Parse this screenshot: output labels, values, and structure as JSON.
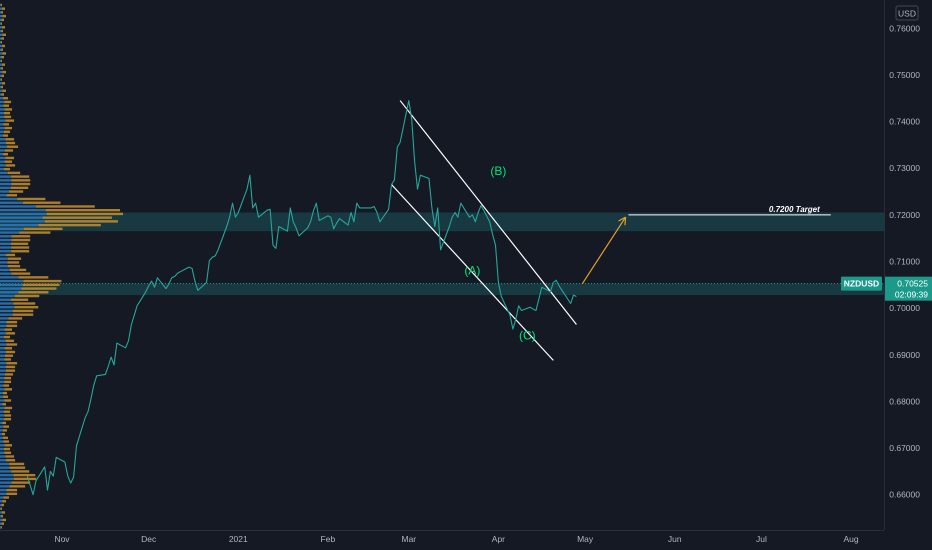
{
  "chart_data": {
    "type": "line",
    "symbol": "NZDUSD",
    "currency": "USD",
    "last_price": "0.70525",
    "countdown": "02:09:39",
    "ylim": [
      0.653,
      0.7655
    ],
    "y_ticks": [
      "0.76000",
      "0.75000",
      "0.74000",
      "0.73000",
      "0.72000",
      "0.71000",
      "0.70000",
      "0.69000",
      "0.68000",
      "0.67000",
      "0.66000"
    ],
    "y_tick_values": [
      0.76,
      0.75,
      0.74,
      0.73,
      0.72,
      0.71,
      0.7,
      0.69,
      0.68,
      0.67,
      0.66
    ],
    "x_ticks": [
      {
        "label": "Nov",
        "date": "2020-11-01"
      },
      {
        "label": "Dec",
        "date": "2020-12-01"
      },
      {
        "label": "2021",
        "date": "2021-01-01"
      },
      {
        "label": "Feb",
        "date": "2021-02-01"
      },
      {
        "label": "Mar",
        "date": "2021-03-01"
      },
      {
        "label": "Apr",
        "date": "2021-04-01"
      },
      {
        "label": "May",
        "date": "2021-05-01"
      },
      {
        "label": "Jun",
        "date": "2021-06-01"
      },
      {
        "label": "Jul",
        "date": "2021-07-01"
      },
      {
        "label": "Aug",
        "date": "2021-08-01"
      }
    ],
    "series": [
      {
        "color": "#26a69a",
        "points": [
          [
            "2020-10-20",
            0.664
          ],
          [
            "2020-10-21",
            0.662
          ],
          [
            "2020-10-22",
            0.66
          ],
          [
            "2020-10-23",
            0.663
          ],
          [
            "2020-10-26",
            0.666
          ],
          [
            "2020-10-27",
            0.661
          ],
          [
            "2020-10-28",
            0.665
          ],
          [
            "2020-10-29",
            0.664
          ],
          [
            "2020-10-30",
            0.668
          ],
          [
            "2020-11-02",
            0.667
          ],
          [
            "2020-11-03",
            0.664
          ],
          [
            "2020-11-04",
            0.6625
          ],
          [
            "2020-11-05",
            0.6638
          ],
          [
            "2020-11-06",
            0.6705
          ],
          [
            "2020-11-09",
            0.6765
          ],
          [
            "2020-11-10",
            0.6778
          ],
          [
            "2020-11-11",
            0.6805
          ],
          [
            "2020-11-12",
            0.6835
          ],
          [
            "2020-11-13",
            0.6855
          ],
          [
            "2020-11-16",
            0.6858
          ],
          [
            "2020-11-17",
            0.6875
          ],
          [
            "2020-11-18",
            0.6895
          ],
          [
            "2020-11-19",
            0.6878
          ],
          [
            "2020-11-20",
            0.6925
          ],
          [
            "2020-11-23",
            0.6915
          ],
          [
            "2020-11-24",
            0.693
          ],
          [
            "2020-11-25",
            0.6965
          ],
          [
            "2020-11-26",
            0.6985
          ],
          [
            "2020-11-27",
            0.7005
          ],
          [
            "2020-11-30",
            0.7035
          ],
          [
            "2020-12-01",
            0.7048
          ],
          [
            "2020-12-02",
            0.7058
          ],
          [
            "2020-12-03",
            0.7045
          ],
          [
            "2020-12-04",
            0.7065
          ],
          [
            "2020-12-07",
            0.7042
          ],
          [
            "2020-12-08",
            0.7052
          ],
          [
            "2020-12-09",
            0.7065
          ],
          [
            "2020-12-10",
            0.7068
          ],
          [
            "2020-12-11",
            0.7075
          ],
          [
            "2020-12-14",
            0.7085
          ],
          [
            "2020-12-15",
            0.7088
          ],
          [
            "2020-12-16",
            0.7085
          ],
          [
            "2020-12-17",
            0.7058
          ],
          [
            "2020-12-18",
            0.7038
          ],
          [
            "2020-12-21",
            0.7055
          ],
          [
            "2020-12-22",
            0.7102
          ],
          [
            "2020-12-23",
            0.7109
          ],
          [
            "2020-12-24",
            0.7112
          ],
          [
            "2020-12-25",
            0.7125
          ],
          [
            "2020-12-28",
            0.7175
          ],
          [
            "2020-12-29",
            0.7195
          ],
          [
            "2020-12-30",
            0.7225
          ],
          [
            "2020-12-31",
            0.7195
          ],
          [
            "2021-01-01",
            0.7205
          ],
          [
            "2021-01-04",
            0.7255
          ],
          [
            "2021-01-05",
            0.7285
          ],
          [
            "2021-01-06",
            0.7215
          ],
          [
            "2021-01-07",
            0.7225
          ],
          [
            "2021-01-08",
            0.7195
          ],
          [
            "2021-01-11",
            0.721
          ],
          [
            "2021-01-12",
            0.7212
          ],
          [
            "2021-01-13",
            0.7135
          ],
          [
            "2021-01-14",
            0.7128
          ],
          [
            "2021-01-15",
            0.7175
          ],
          [
            "2021-01-18",
            0.7165
          ],
          [
            "2021-01-19",
            0.7215
          ],
          [
            "2021-01-20",
            0.7185
          ],
          [
            "2021-01-21",
            0.7172
          ],
          [
            "2021-01-22",
            0.7155
          ],
          [
            "2021-01-25",
            0.7172
          ],
          [
            "2021-01-26",
            0.7185
          ],
          [
            "2021-01-27",
            0.7208
          ],
          [
            "2021-01-28",
            0.7225
          ],
          [
            "2021-01-29",
            0.7188
          ],
          [
            "2021-02-01",
            0.7198
          ],
          [
            "2021-02-02",
            0.7195
          ],
          [
            "2021-02-03",
            0.717
          ],
          [
            "2021-02-04",
            0.7182
          ],
          [
            "2021-02-05",
            0.7192
          ],
          [
            "2021-02-08",
            0.7178
          ],
          [
            "2021-02-09",
            0.7205
          ],
          [
            "2021-02-10",
            0.7185
          ],
          [
            "2021-02-11",
            0.7225
          ],
          [
            "2021-02-12",
            0.7215
          ],
          [
            "2021-02-15",
            0.7215
          ],
          [
            "2021-02-16",
            0.7215
          ],
          [
            "2021-02-17",
            0.7218
          ],
          [
            "2021-02-18",
            0.7205
          ],
          [
            "2021-02-19",
            0.7185
          ],
          [
            "2021-02-22",
            0.7212
          ],
          [
            "2021-02-23",
            0.7265
          ],
          [
            "2021-02-24",
            0.7275
          ],
          [
            "2021-02-25",
            0.7345
          ],
          [
            "2021-02-26",
            0.7355
          ],
          [
            "2021-03-01",
            0.7445
          ],
          [
            "2021-03-02",
            0.7405
          ],
          [
            "2021-03-03",
            0.7315
          ],
          [
            "2021-03-04",
            0.7255
          ],
          [
            "2021-03-05",
            0.7285
          ],
          [
            "2021-03-08",
            0.7278
          ],
          [
            "2021-03-09",
            0.7215
          ],
          [
            "2021-03-10",
            0.7175
          ],
          [
            "2021-03-11",
            0.7215
          ],
          [
            "2021-03-12",
            0.7125
          ],
          [
            "2021-03-15",
            0.7175
          ],
          [
            "2021-03-16",
            0.7195
          ],
          [
            "2021-03-17",
            0.7205
          ],
          [
            "2021-03-18",
            0.7195
          ],
          [
            "2021-03-19",
            0.7225
          ],
          [
            "2021-03-22",
            0.7195
          ],
          [
            "2021-03-23",
            0.72
          ],
          [
            "2021-03-24",
            0.7185
          ],
          [
            "2021-03-25",
            0.7205
          ],
          [
            "2021-03-26",
            0.722
          ],
          [
            "2021-03-29",
            0.7185
          ],
          [
            "2021-03-30",
            0.7158
          ],
          [
            "2021-03-31",
            0.7135
          ],
          [
            "2021-04-01",
            0.7055
          ],
          [
            "2021-04-02",
            0.7025
          ],
          [
            "2021-04-05",
            0.6985
          ],
          [
            "2021-04-06",
            0.6955
          ],
          [
            "2021-04-07",
            0.6975
          ],
          [
            "2021-04-08",
            0.7005
          ],
          [
            "2021-04-09",
            0.6995
          ],
          [
            "2021-04-12",
            0.7002
          ],
          [
            "2021-04-13",
            0.6998
          ],
          [
            "2021-04-14",
            0.6995
          ],
          [
            "2021-04-15",
            0.702
          ],
          [
            "2021-04-16",
            0.7045
          ],
          [
            "2021-04-19",
            0.7035
          ],
          [
            "2021-04-20",
            0.7055
          ],
          [
            "2021-04-21",
            0.706
          ],
          [
            "2021-04-22",
            0.7048
          ],
          [
            "2021-04-23",
            0.7038
          ],
          [
            "2021-04-26",
            0.701
          ],
          [
            "2021-04-27",
            0.7028
          ],
          [
            "2021-04-28",
            0.7025
          ]
        ]
      }
    ],
    "zones": [
      {
        "from": 0.7165,
        "to": 0.7205,
        "color": "#1a3d46"
      },
      {
        "from": 0.7028,
        "to": 0.7053,
        "color": "#1a3d46"
      }
    ],
    "target_label": "0.7200 Target",
    "target_level": 0.72,
    "target_range": [
      "2021-05-16",
      "2021-07-25"
    ],
    "wave_labels": [
      {
        "text": "(A)",
        "date": "2021-03-23",
        "price": 0.7072
      },
      {
        "text": "(B)",
        "date": "2021-04-01",
        "price": 0.7285
      },
      {
        "text": "(C)",
        "date": "2021-04-11",
        "price": 0.6933
      }
    ],
    "channel_upper": [
      [
        "2021-02-26",
        0.7445
      ],
      [
        "2021-04-28",
        0.6965
      ]
    ],
    "channel_lower": [
      [
        "2021-02-23",
        0.7265
      ],
      [
        "2021-04-20",
        0.6888
      ]
    ],
    "arrow": [
      [
        "2021-04-30",
        0.7052
      ],
      [
        "2021-05-15",
        0.7195
      ]
    ],
    "grid": false,
    "colors": {
      "background": "#151924",
      "line": "#26a69a",
      "wave_label": "#00e676",
      "channel": "#ffffff",
      "arrow": "#e0a030",
      "profile_primary": "#2a7cc0",
      "profile_secondary": "#c8912a",
      "axis_text": "#b2b5be",
      "price_badge": "#1b9a8a"
    }
  }
}
